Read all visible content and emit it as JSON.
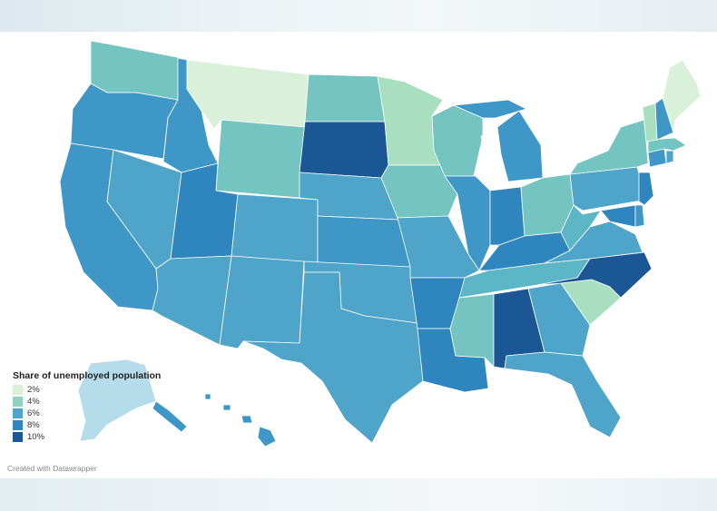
{
  "legend": {
    "title": "Share of unemployed population",
    "items": [
      {
        "label": "2%",
        "color": "#daf1d9"
      },
      {
        "label": "4%",
        "color": "#8fd0bf"
      },
      {
        "label": "6%",
        "color": "#4ea5c9"
      },
      {
        "label": "8%",
        "color": "#2f85bd"
      },
      {
        "label": "10%",
        "color": "#1c5795"
      }
    ]
  },
  "credit": "Created with Datawrapper",
  "colors": {
    "c2": "#daf1d9",
    "c3": "#a8dfc1",
    "c4": "#74c4c2",
    "c5": "#5db6c6",
    "c6": "#4ea5c9",
    "c7": "#3e97c6",
    "c8": "#2f85bd",
    "c10": "#1c5795",
    "alaska": "#b5dcea",
    "border": "#ffffff"
  }
}
